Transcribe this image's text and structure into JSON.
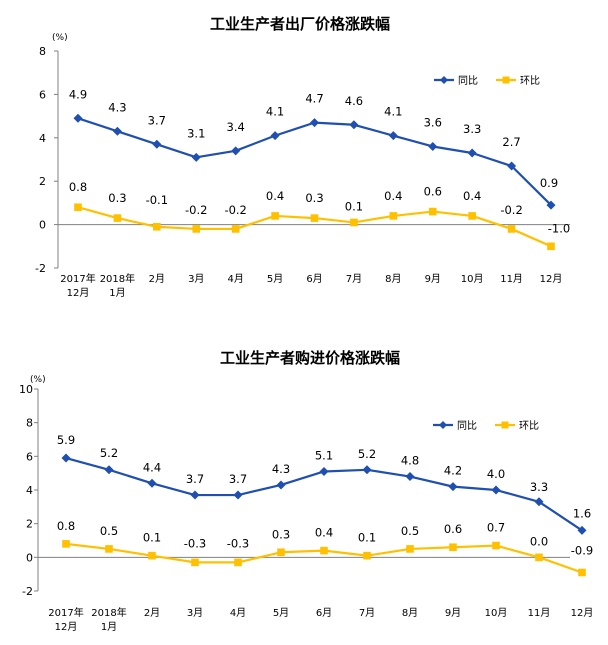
{
  "charts": [
    {
      "title": "工业生产者出厂价格涨跌幅",
      "chart_data": {
        "type": "line",
        "title": "工业生产者出厂价格涨跌幅",
        "ylabel": "(%)",
        "ylim": [
          -2,
          8
        ],
        "yticks": [
          "8",
          "6",
          "4",
          "2",
          "0",
          "-2"
        ],
        "categories": [
          "2017年\n12月",
          "2018年\n1月",
          "2月",
          "3月",
          "4月",
          "5月",
          "6月",
          "7月",
          "8月",
          "9月",
          "10月",
          "11月",
          "12月"
        ],
        "legend_position": "top-right",
        "series": [
          {
            "name": "同比",
            "color": "#1f4fb0",
            "marker": "diamond",
            "values": [
              4.9,
              4.3,
              3.7,
              3.1,
              3.4,
              4.1,
              4.7,
              4.6,
              4.1,
              3.6,
              3.3,
              2.7,
              0.9
            ],
            "labels": [
              "4.9",
              "4.3",
              "3.7",
              "3.1",
              "3.4",
              "4.1",
              "4.7",
              "4.6",
              "4.1",
              "3.6",
              "3.3",
              "2.7",
              "0.9"
            ]
          },
          {
            "name": "环比",
            "color": "#ffc000",
            "marker": "square",
            "values": [
              0.8,
              0.3,
              -0.1,
              -0.2,
              -0.2,
              0.4,
              0.3,
              0.1,
              0.4,
              0.6,
              0.4,
              -0.2,
              -1.0
            ],
            "labels": [
              "0.8",
              "0.3",
              "-0.1",
              "-0.2",
              "-0.2",
              "0.4",
              "0.3",
              "0.1",
              "0.4",
              "0.6",
              "0.4",
              "-0.2",
              "-1.0"
            ]
          }
        ]
      }
    },
    {
      "title": "工业生产者购进价格涨跌幅",
      "chart_data": {
        "type": "line",
        "title": "工业生产者购进价格涨跌幅",
        "ylabel": "(%)",
        "ylim": [
          -2,
          10
        ],
        "yticks": [
          "10",
          "8",
          "6",
          "4",
          "2",
          "0",
          "-2"
        ],
        "categories": [
          "2017年\n12月",
          "2018年\n1月",
          "2月",
          "3月",
          "4月",
          "5月",
          "6月",
          "7月",
          "8月",
          "9月",
          "10月",
          "11月",
          "12月"
        ],
        "legend_position": "top-right",
        "series": [
          {
            "name": "同比",
            "color": "#1f4fb0",
            "marker": "diamond",
            "values": [
              5.9,
              5.2,
              4.4,
              3.7,
              3.7,
              4.3,
              5.1,
              5.2,
              4.8,
              4.2,
              4.0,
              3.3,
              1.6
            ],
            "labels": [
              "5.9",
              "5.2",
              "4.4",
              "3.7",
              "3.7",
              "4.3",
              "5.1",
              "5.2",
              "4.8",
              "4.2",
              "4.0",
              "3.3",
              "1.6"
            ]
          },
          {
            "name": "环比",
            "color": "#ffc000",
            "marker": "square",
            "values": [
              0.8,
              0.5,
              0.1,
              -0.3,
              -0.3,
              0.3,
              0.4,
              0.1,
              0.5,
              0.6,
              0.7,
              0.0,
              -0.9
            ],
            "labels": [
              "0.8",
              "0.5",
              "0.1",
              "-0.3",
              "-0.3",
              "0.3",
              "0.4",
              "0.1",
              "0.5",
              "0.6",
              "0.7",
              "0.0",
              "-0.9"
            ]
          }
        ]
      }
    }
  ]
}
